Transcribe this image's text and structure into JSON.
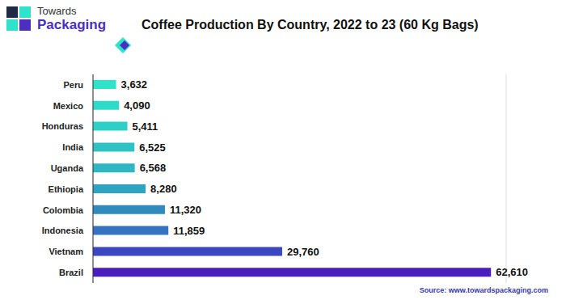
{
  "chart_data": {
    "type": "bar",
    "title": "Coffee Production By Country, 2022 to 23 (60 Kg Bags)",
    "categories": [
      "Peru",
      "Mexico",
      "Honduras",
      "India",
      "Uganda",
      "Ethiopia",
      "Colombia",
      "Indonesia",
      "Vietnam",
      "Brazil"
    ],
    "values": [
      3632,
      4090,
      5411,
      6525,
      6568,
      8280,
      11320,
      11859,
      29760,
      62610
    ],
    "value_labels": [
      "3,632",
      "4,090",
      "5,411",
      "6,525",
      "6,568",
      "8,280",
      "11,320",
      "11,859",
      "29,760",
      "62,610"
    ],
    "colors": [
      "#2ee3c9",
      "#2ddbc8",
      "#2dd0c6",
      "#2ec2c4",
      "#2eb6c2",
      "#2fa4c0",
      "#318abd",
      "#3573c0",
      "#3b46c1",
      "#4a1dbf"
    ],
    "orientation": "horizontal",
    "data_labels": true,
    "xlim": [
      0,
      65000
    ],
    "xticks": [
      0,
      16250,
      32500,
      48750,
      65000
    ],
    "grid": true,
    "tick_labels": "y",
    "source": "Source: www.towardspackaging.com"
  },
  "logo": {
    "line1": "Towards",
    "line2": "Packaging"
  }
}
